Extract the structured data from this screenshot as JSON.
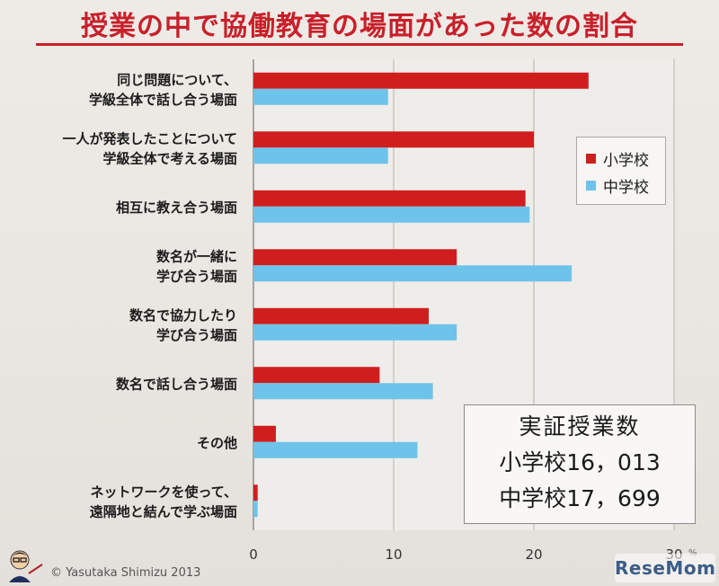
{
  "title": "授業の中で協働教育の場面があった数の割合",
  "legend": {
    "elementary": "小学校",
    "junior_high": "中学校"
  },
  "colors": {
    "elementary": "#d01e1e",
    "junior_high": "#6ec3ea",
    "title": "#c8202a"
  },
  "infobox": {
    "heading": "実証授業数",
    "elementary_count": "小学校16，013",
    "junior_high_count": "中学校17，699"
  },
  "copyright": "© Yasutaka Shimizu 2013",
  "watermark": "ReseMom",
  "unit": "%",
  "chart_data": {
    "type": "bar",
    "orientation": "horizontal",
    "title": "授業の中で協働教育の場面があった数の割合",
    "categories": [
      [
        "同じ問題について、",
        "学級全体で話し合う場面"
      ],
      [
        "一人が発表したことについて",
        "学級全体で考える場面"
      ],
      [
        "相互に教え合う場面"
      ],
      [
        "数名が一緒に",
        "学び合う場面"
      ],
      [
        "数名で協力したり",
        "学び合う場面"
      ],
      [
        "数名で話し合う場面"
      ],
      [
        "その他"
      ],
      [
        "ネットワークを使って、",
        "遠隔地と結んで学ぶ場面"
      ]
    ],
    "series": [
      {
        "name": "小学校",
        "values": [
          23.9,
          20.0,
          19.4,
          14.5,
          12.5,
          9.0,
          1.6,
          0.3
        ]
      },
      {
        "name": "中学校",
        "values": [
          9.6,
          9.6,
          19.7,
          22.7,
          14.5,
          12.8,
          11.7,
          0.3
        ]
      }
    ],
    "xlim": [
      0,
      30
    ],
    "xticks": [
      "0",
      "10",
      "20",
      "30"
    ],
    "xlabel": "",
    "ylabel": "",
    "grid": true,
    "legend_position": "right"
  }
}
